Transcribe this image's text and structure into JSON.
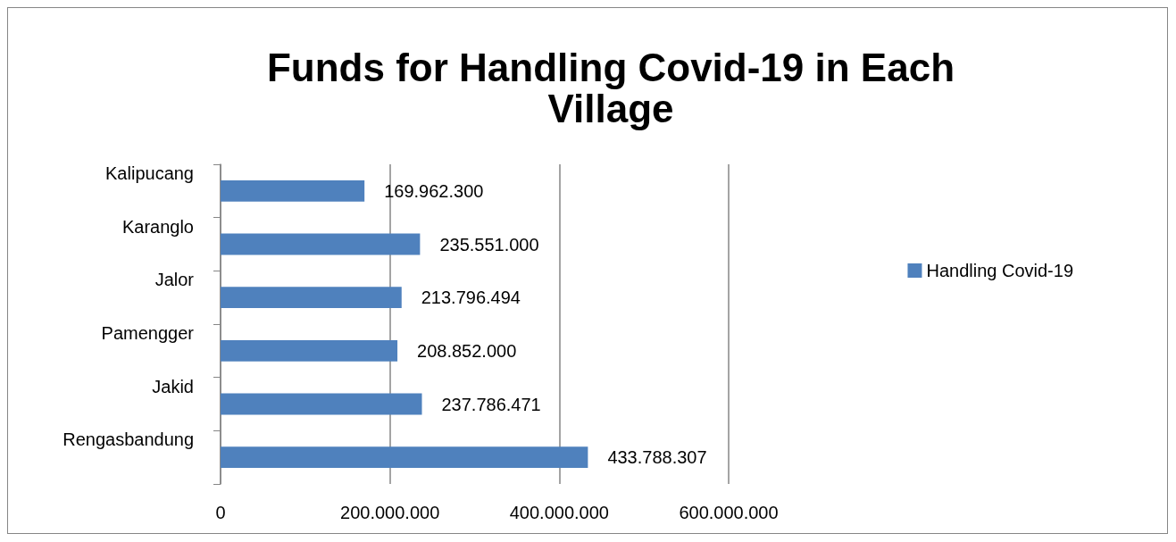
{
  "chart_data": {
    "type": "bar",
    "orientation": "horizontal",
    "title": "Funds for Handling Covid-19 in Each\nVillage",
    "categories": [
      "Kalipucang",
      "Karanglo",
      "Jalor",
      "Pamengger",
      "Jakid",
      "Rengasbandung"
    ],
    "series": [
      {
        "name": "Handling Covid-19",
        "color": "#4f81bd",
        "values": [
          169962300,
          235551000,
          213796494,
          208852000,
          237786471,
          433788307
        ],
        "value_labels": [
          "169.962.300",
          "235.551.000",
          "213.796.494",
          "208.852.000",
          "237.786.471",
          "433.788.307"
        ]
      }
    ],
    "xlim": [
      0,
      600000000
    ],
    "xticks": [
      {
        "value": 0,
        "label": "0"
      },
      {
        "value": 200000000,
        "label": "200.000.000"
      },
      {
        "value": 400000000,
        "label": "400.000.000"
      },
      {
        "value": 600000000,
        "label": "600.000.000"
      }
    ],
    "grid": "x",
    "legend": "right"
  }
}
